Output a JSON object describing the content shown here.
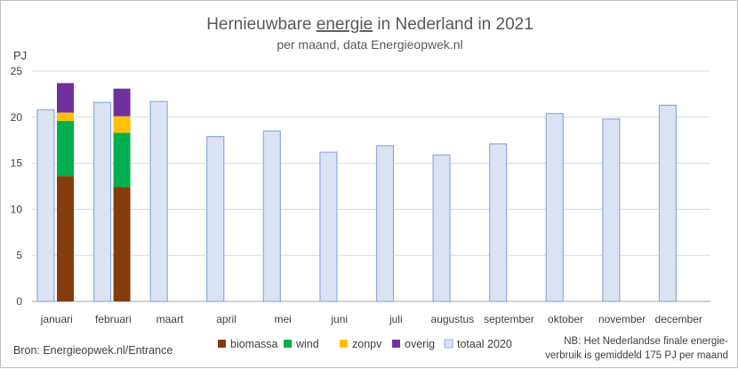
{
  "colors": {
    "biomassa": "#843c0c",
    "wind": "#00b050",
    "zonpv": "#ffc000",
    "overig": "#7030a0",
    "totaal_fill": "#dae3f3",
    "totaal_stroke": "#8faadc",
    "grid": "#d9d9d9"
  },
  "chart_data": {
    "type": "bar",
    "title_prefix": "Hernieuwbare ",
    "title_underlined": "energie",
    "title_suffix": " in Nederland in 2021",
    "subtitle": "per maand, data Energieopwek.nl",
    "ylabel": "PJ",
    "ylim": [
      0,
      25
    ],
    "yticks": [
      "0",
      "5",
      "10",
      "15",
      "20",
      "25"
    ],
    "grid": true,
    "categories": [
      "januari",
      "februari",
      "maart",
      "april",
      "mei",
      "juni",
      "juli",
      "augustus",
      "september",
      "oktober",
      "november",
      "december"
    ],
    "totaal_2020": {
      "name": "totaal 2020",
      "values": [
        20.8,
        21.6,
        21.7,
        17.9,
        18.5,
        16.2,
        16.9,
        15.9,
        17.1,
        20.4,
        19.8,
        21.3
      ]
    },
    "stacked_2021": [
      {
        "name": "biomassa",
        "values": [
          13.6,
          12.4
        ]
      },
      {
        "name": "wind",
        "values": [
          6.0,
          5.9
        ]
      },
      {
        "name": "zonpv",
        "values": [
          0.9,
          1.8
        ]
      },
      {
        "name": "overig",
        "values": [
          3.2,
          3.0
        ]
      }
    ],
    "legend_placement": "bottom"
  },
  "footer": {
    "source": "Bron: Energieopwek.nl/Entrance",
    "note_line1": "NB: Het Nederlandse finale energie-",
    "note_line2": "verbruik is gemiddeld 175 PJ per maand"
  }
}
